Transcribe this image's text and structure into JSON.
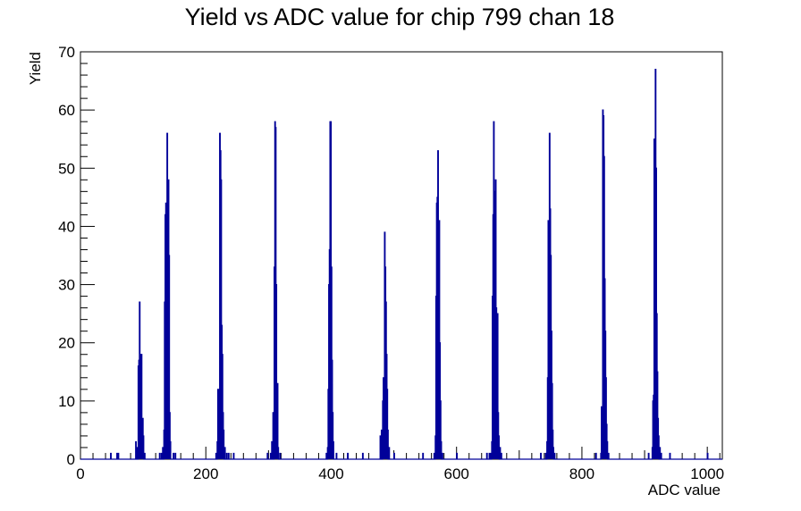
{
  "chart_data": {
    "type": "histogram",
    "title": "Yield vs ADC value for chip 799 chan 18",
    "xlabel": "ADC value",
    "ylabel": "Yield",
    "xlim": [
      0,
      1024
    ],
    "ylim": [
      0,
      70
    ],
    "x_ticks": [
      0,
      200,
      400,
      600,
      800,
      1000
    ],
    "y_ticks": [
      0,
      10,
      20,
      30,
      40,
      50,
      60,
      70
    ],
    "line_color": "#000099",
    "bins": [
      {
        "x": 48,
        "y": 1
      },
      {
        "x": 58,
        "y": 1
      },
      {
        "x": 60,
        "y": 1
      },
      {
        "x": 88,
        "y": 3
      },
      {
        "x": 90,
        "y": 2
      },
      {
        "x": 92,
        "y": 16
      },
      {
        "x": 93,
        "y": 17
      },
      {
        "x": 94,
        "y": 27
      },
      {
        "x": 95,
        "y": 18
      },
      {
        "x": 96,
        "y": 16
      },
      {
        "x": 97,
        "y": 18
      },
      {
        "x": 98,
        "y": 5
      },
      {
        "x": 99,
        "y": 7
      },
      {
        "x": 100,
        "y": 4
      },
      {
        "x": 102,
        "y": 1
      },
      {
        "x": 126,
        "y": 1
      },
      {
        "x": 129,
        "y": 1
      },
      {
        "x": 131,
        "y": 2
      },
      {
        "x": 133,
        "y": 5
      },
      {
        "x": 134,
        "y": 27
      },
      {
        "x": 135,
        "y": 42
      },
      {
        "x": 136,
        "y": 44
      },
      {
        "x": 137,
        "y": 24
      },
      {
        "x": 138,
        "y": 56
      },
      {
        "x": 139,
        "y": 22
      },
      {
        "x": 140,
        "y": 48
      },
      {
        "x": 141,
        "y": 35
      },
      {
        "x": 142,
        "y": 8
      },
      {
        "x": 143,
        "y": 3
      },
      {
        "x": 148,
        "y": 1
      },
      {
        "x": 151,
        "y": 1
      },
      {
        "x": 216,
        "y": 1
      },
      {
        "x": 218,
        "y": 3
      },
      {
        "x": 219,
        "y": 12
      },
      {
        "x": 220,
        "y": 8
      },
      {
        "x": 221,
        "y": 12
      },
      {
        "x": 222,
        "y": 56
      },
      {
        "x": 223,
        "y": 53
      },
      {
        "x": 224,
        "y": 48
      },
      {
        "x": 225,
        "y": 23
      },
      {
        "x": 226,
        "y": 18
      },
      {
        "x": 227,
        "y": 8
      },
      {
        "x": 228,
        "y": 5
      },
      {
        "x": 230,
        "y": 2
      },
      {
        "x": 233,
        "y": 1
      },
      {
        "x": 236,
        "y": 1
      },
      {
        "x": 244,
        "y": 1
      },
      {
        "x": 298,
        "y": 1
      },
      {
        "x": 303,
        "y": 1
      },
      {
        "x": 305,
        "y": 3
      },
      {
        "x": 307,
        "y": 8
      },
      {
        "x": 309,
        "y": 33
      },
      {
        "x": 310,
        "y": 58
      },
      {
        "x": 311,
        "y": 57
      },
      {
        "x": 312,
        "y": 30
      },
      {
        "x": 313,
        "y": 6
      },
      {
        "x": 314,
        "y": 13
      },
      {
        "x": 315,
        "y": 2
      },
      {
        "x": 318,
        "y": 1
      },
      {
        "x": 392,
        "y": 1
      },
      {
        "x": 394,
        "y": 2
      },
      {
        "x": 395,
        "y": 12
      },
      {
        "x": 396,
        "y": 30
      },
      {
        "x": 397,
        "y": 36
      },
      {
        "x": 398,
        "y": 58
      },
      {
        "x": 399,
        "y": 58
      },
      {
        "x": 400,
        "y": 33
      },
      {
        "x": 401,
        "y": 17
      },
      {
        "x": 402,
        "y": 8
      },
      {
        "x": 403,
        "y": 3
      },
      {
        "x": 408,
        "y": 1
      },
      {
        "x": 426,
        "y": 1
      },
      {
        "x": 450,
        "y": 1
      },
      {
        "x": 478,
        "y": 4
      },
      {
        "x": 480,
        "y": 5
      },
      {
        "x": 482,
        "y": 10
      },
      {
        "x": 483,
        "y": 14
      },
      {
        "x": 484,
        "y": 8
      },
      {
        "x": 485,
        "y": 39
      },
      {
        "x": 486,
        "y": 33
      },
      {
        "x": 487,
        "y": 27
      },
      {
        "x": 488,
        "y": 18
      },
      {
        "x": 489,
        "y": 12
      },
      {
        "x": 490,
        "y": 5
      },
      {
        "x": 492,
        "y": 2
      },
      {
        "x": 500,
        "y": 1
      },
      {
        "x": 546,
        "y": 1
      },
      {
        "x": 564,
        "y": 1
      },
      {
        "x": 566,
        "y": 4
      },
      {
        "x": 567,
        "y": 28
      },
      {
        "x": 568,
        "y": 44
      },
      {
        "x": 569,
        "y": 45
      },
      {
        "x": 570,
        "y": 53
      },
      {
        "x": 571,
        "y": 38
      },
      {
        "x": 572,
        "y": 41
      },
      {
        "x": 573,
        "y": 20
      },
      {
        "x": 574,
        "y": 10
      },
      {
        "x": 575,
        "y": 3
      },
      {
        "x": 577,
        "y": 1
      },
      {
        "x": 600,
        "y": 1
      },
      {
        "x": 648,
        "y": 1
      },
      {
        "x": 652,
        "y": 1
      },
      {
        "x": 654,
        "y": 1
      },
      {
        "x": 656,
        "y": 3
      },
      {
        "x": 657,
        "y": 28
      },
      {
        "x": 658,
        "y": 42
      },
      {
        "x": 659,
        "y": 58
      },
      {
        "x": 660,
        "y": 46
      },
      {
        "x": 661,
        "y": 25
      },
      {
        "x": 662,
        "y": 48
      },
      {
        "x": 663,
        "y": 26
      },
      {
        "x": 664,
        "y": 19
      },
      {
        "x": 665,
        "y": 25
      },
      {
        "x": 666,
        "y": 8
      },
      {
        "x": 667,
        "y": 4
      },
      {
        "x": 669,
        "y": 2
      },
      {
        "x": 671,
        "y": 1
      },
      {
        "x": 734,
        "y": 1
      },
      {
        "x": 742,
        "y": 1
      },
      {
        "x": 744,
        "y": 3
      },
      {
        "x": 745,
        "y": 14
      },
      {
        "x": 746,
        "y": 41
      },
      {
        "x": 747,
        "y": 35
      },
      {
        "x": 748,
        "y": 56
      },
      {
        "x": 749,
        "y": 43
      },
      {
        "x": 750,
        "y": 35
      },
      {
        "x": 751,
        "y": 22
      },
      {
        "x": 752,
        "y": 13
      },
      {
        "x": 753,
        "y": 5
      },
      {
        "x": 754,
        "y": 2
      },
      {
        "x": 756,
        "y": 1
      },
      {
        "x": 822,
        "y": 1
      },
      {
        "x": 830,
        "y": 1
      },
      {
        "x": 831,
        "y": 9
      },
      {
        "x": 832,
        "y": 4
      },
      {
        "x": 833,
        "y": 60
      },
      {
        "x": 834,
        "y": 59
      },
      {
        "x": 835,
        "y": 52
      },
      {
        "x": 836,
        "y": 31
      },
      {
        "x": 837,
        "y": 22
      },
      {
        "x": 838,
        "y": 14
      },
      {
        "x": 839,
        "y": 6
      },
      {
        "x": 840,
        "y": 3
      },
      {
        "x": 842,
        "y": 1
      },
      {
        "x": 906,
        "y": 1
      },
      {
        "x": 912,
        "y": 2
      },
      {
        "x": 913,
        "y": 10
      },
      {
        "x": 914,
        "y": 11
      },
      {
        "x": 915,
        "y": 55
      },
      {
        "x": 916,
        "y": 9
      },
      {
        "x": 917,
        "y": 67
      },
      {
        "x": 918,
        "y": 50
      },
      {
        "x": 919,
        "y": 25
      },
      {
        "x": 920,
        "y": 15
      },
      {
        "x": 921,
        "y": 7
      },
      {
        "x": 922,
        "y": 4
      },
      {
        "x": 924,
        "y": 2
      },
      {
        "x": 926,
        "y": 1
      },
      {
        "x": 940,
        "y": 1
      },
      {
        "x": 1000,
        "y": 1
      }
    ]
  }
}
